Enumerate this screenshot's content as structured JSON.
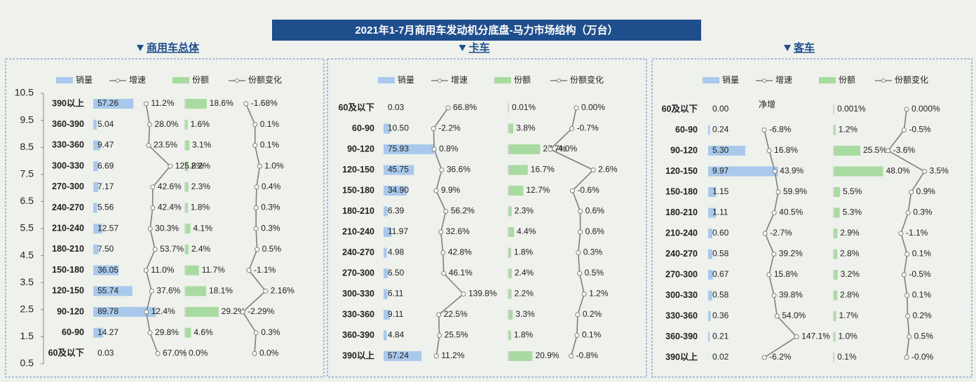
{
  "title": "2021年1-7月商用车发动机分底盘-马力市场结构（万台）",
  "chart_data": [
    {
      "type": "bar",
      "title": "商用车总体",
      "categories": [
        "390以上",
        "360-390",
        "330-360",
        "300-330",
        "270-300",
        "240-270",
        "210-240",
        "180-210",
        "150-180",
        "120-150",
        "90-120",
        "60-90",
        "60及以下"
      ],
      "ylim": [
        0.5,
        10.5
      ],
      "yticks": [
        0.5,
        1.5,
        2.5,
        3.5,
        4.5,
        5.5,
        6.5,
        7.5,
        8.5,
        9.5,
        10.5
      ],
      "series": [
        {
          "name": "销量",
          "color": "#a9c9ec",
          "values": [
            57.26,
            5.04,
            9.47,
            6.69,
            7.17,
            5.56,
            12.57,
            7.5,
            36.05,
            55.74,
            89.78,
            14.27,
            0.03
          ],
          "value_labels": [
            "57.26",
            "5.04",
            "9.47",
            "6.69",
            "7.17",
            "5.56",
            "12.57",
            "7.50",
            "36.05",
            "55.74",
            "89.78",
            "14.27",
            "0.03"
          ]
        },
        {
          "name": "增速",
          "color": "#7f7f7f",
          "values": [
            11.2,
            28.0,
            23.5,
            125.8,
            42.6,
            42.4,
            30.3,
            53.7,
            11.0,
            37.6,
            12.4,
            29.8,
            67.0
          ],
          "value_labels": [
            "11.2%",
            "28.0%",
            "23.5%",
            "125.8%",
            "42.6%",
            "42.4%",
            "30.3%",
            "53.7%",
            "11.0%",
            "37.6%",
            "12.4%",
            "29.8%",
            "67.0%"
          ]
        },
        {
          "name": "份额",
          "color": "#a8dba0",
          "values": [
            18.6,
            1.6,
            3.1,
            2.2,
            2.3,
            1.8,
            4.1,
            2.4,
            11.7,
            18.1,
            29.2,
            4.6,
            0.0
          ],
          "value_labels": [
            "18.6%",
            "1.6%",
            "3.1%",
            "2.2%",
            "2.3%",
            "1.8%",
            "4.1%",
            "2.4%",
            "11.7%",
            "18.1%",
            "29.2%",
            "4.6%",
            "0.0%"
          ]
        },
        {
          "name": "份额变化",
          "color": "#7f7f7f",
          "values": [
            -1.68,
            0.1,
            0.1,
            1.0,
            0.4,
            0.3,
            0.3,
            0.5,
            -1.1,
            2.16,
            -2.29,
            0.3,
            0.0
          ],
          "value_labels": [
            "-1.68%",
            "0.1%",
            "0.1%",
            "1.0%",
            "0.4%",
            "0.3%",
            "0.3%",
            "0.5%",
            "-1.1%",
            "2.16%",
            "-2.29%",
            "0.3%",
            "0.0%"
          ]
        }
      ]
    },
    {
      "type": "bar",
      "title": "卡车",
      "categories": [
        "60及以下",
        "60-90",
        "90-120",
        "120-150",
        "150-180",
        "180-210",
        "210-240",
        "240-270",
        "270-300",
        "300-330",
        "330-360",
        "360-390",
        "390以上"
      ],
      "series": [
        {
          "name": "销量",
          "color": "#a9c9ec",
          "values": [
            0.03,
            10.5,
            75.93,
            45.75,
            34.9,
            6.39,
            11.97,
            4.98,
            6.5,
            6.11,
            9.11,
            4.84,
            57.24
          ],
          "value_labels": [
            "0.03",
            "10.50",
            "75.93",
            "45.75",
            "34.90",
            "6.39",
            "11.97",
            "4.98",
            "6.50",
            "6.11",
            "9.11",
            "4.84",
            "57.24"
          ]
        },
        {
          "name": "增速",
          "color": "#7f7f7f",
          "values": [
            66.8,
            -2.2,
            0.8,
            36.6,
            9.9,
            56.2,
            32.6,
            42.8,
            46.1,
            139.8,
            22.5,
            25.5,
            11.2
          ],
          "value_labels": [
            "66.8%",
            "-2.2%",
            "0.8%",
            "36.6%",
            "9.9%",
            "56.2%",
            "32.6%",
            "42.8%",
            "46.1%",
            "139.8%",
            "22.5%",
            "25.5%",
            "11.2%"
          ]
        },
        {
          "name": "份额",
          "color": "#a8dba0",
          "values": [
            0.01,
            3.8,
            27.7,
            16.7,
            12.7,
            2.3,
            4.4,
            1.8,
            2.4,
            2.2,
            3.3,
            1.8,
            20.9
          ],
          "value_labels": [
            "0.01%",
            "3.8%",
            "27.7%",
            "16.7%",
            "12.7%",
            "2.3%",
            "4.4%",
            "1.8%",
            "2.4%",
            "2.2%",
            "3.3%",
            "1.8%",
            "20.9%"
          ]
        },
        {
          "name": "份额变化",
          "color": "#7f7f7f",
          "values": [
            0.0,
            -0.7,
            -4.0,
            2.6,
            -0.6,
            0.6,
            0.6,
            0.3,
            0.5,
            1.2,
            0.2,
            0.1,
            -0.8
          ],
          "value_labels": [
            "0.00%",
            "-0.7%",
            "-4.0%",
            "2.6%",
            "-0.6%",
            "0.6%",
            "0.6%",
            "0.3%",
            "0.5%",
            "1.2%",
            "0.2%",
            "0.1%",
            "-0.8%"
          ]
        }
      ]
    },
    {
      "type": "bar",
      "title": "客车",
      "categories": [
        "60及以下",
        "60-90",
        "90-120",
        "120-150",
        "150-180",
        "180-210",
        "210-240",
        "240-270",
        "270-300",
        "300-330",
        "330-360",
        "360-390",
        "390以上"
      ],
      "series": [
        {
          "name": "销量",
          "color": "#a9c9ec",
          "values": [
            0.0,
            0.24,
            5.3,
            9.97,
            1.15,
            1.11,
            0.6,
            0.58,
            0.67,
            0.58,
            0.36,
            0.21,
            0.02
          ],
          "value_labels": [
            "0.00",
            "0.24",
            "5.30",
            "9.97",
            "1.15",
            "1.11",
            "0.60",
            "0.58",
            "0.67",
            "0.58",
            "0.36",
            "0.21",
            "0.02"
          ]
        },
        {
          "name": "增速",
          "color": "#7f7f7f",
          "values": [
            null,
            -6.8,
            16.8,
            43.9,
            59.9,
            40.5,
            -2.7,
            39.2,
            15.8,
            39.8,
            54.0,
            147.1,
            -6.2
          ],
          "value_labels": [
            "净增",
            "-6.8%",
            "16.8%",
            "43.9%",
            "59.9%",
            "40.5%",
            "-2.7%",
            "39.2%",
            "15.8%",
            "39.8%",
            "54.0%",
            "147.1%",
            "-6.2%"
          ]
        },
        {
          "name": "份额",
          "color": "#a8dba0",
          "values": [
            0.001,
            1.2,
            25.5,
            48.0,
            5.5,
            5.3,
            2.9,
            2.8,
            3.2,
            2.8,
            1.7,
            1.0,
            0.1
          ],
          "value_labels": [
            "0.001%",
            "1.2%",
            "25.5%",
            "48.0%",
            "5.5%",
            "5.3%",
            "2.9%",
            "2.8%",
            "3.2%",
            "2.8%",
            "1.7%",
            "1.0%",
            "0.1%"
          ]
        },
        {
          "name": "份额变化",
          "color": "#7f7f7f",
          "values": [
            0.0,
            -0.5,
            -3.6,
            3.5,
            0.9,
            0.3,
            -1.1,
            0.1,
            -0.5,
            0.1,
            0.2,
            0.5,
            -0.0
          ],
          "value_labels": [
            "0.000%",
            "-0.5%",
            "-3.6%",
            "3.5%",
            "0.9%",
            "0.3%",
            "-1.1%",
            "0.1%",
            "-0.5%",
            "0.1%",
            "0.2%",
            "0.5%",
            "-0.0%"
          ]
        }
      ]
    }
  ]
}
